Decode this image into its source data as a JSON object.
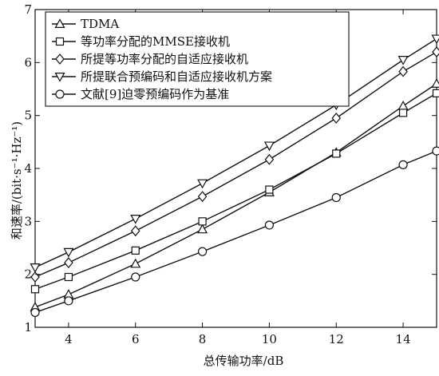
{
  "chart_data": {
    "type": "line",
    "xlabel": "总传输功率/dB",
    "ylabel": "和速率/(bit·s⁻¹·Hz⁻¹)",
    "xlim": [
      3,
      15
    ],
    "ylim": [
      1,
      7
    ],
    "xticks": [
      4,
      6,
      8,
      10,
      12,
      14
    ],
    "yticks": [
      1,
      2,
      3,
      4,
      5,
      6,
      7
    ],
    "grid": false,
    "legend_position": "top-left",
    "x": [
      3,
      4,
      6,
      8,
      10,
      12,
      14,
      15
    ],
    "series": [
      {
        "name": "TDMA",
        "marker": "triangle-up",
        "values": [
          1.38,
          1.62,
          2.2,
          2.85,
          3.55,
          4.3,
          5.18,
          5.6
        ]
      },
      {
        "name": "等功率分配的MMSE接收机",
        "marker": "square",
        "values": [
          1.72,
          1.95,
          2.45,
          3.0,
          3.6,
          4.28,
          5.05,
          5.42
        ]
      },
      {
        "name": "所提等功率分配的自适应接收机",
        "marker": "diamond",
        "values": [
          1.95,
          2.22,
          2.82,
          3.47,
          4.17,
          4.95,
          5.83,
          6.2
        ]
      },
      {
        "name": "所提联合预编码和自适应接收机方案",
        "marker": "triangle-down",
        "values": [
          2.13,
          2.42,
          3.05,
          3.72,
          4.43,
          5.2,
          6.05,
          6.45
        ]
      },
      {
        "name": "文献[9]迫零预编码作为基准",
        "marker": "circle",
        "values": [
          1.28,
          1.5,
          1.95,
          2.43,
          2.93,
          3.45,
          4.07,
          4.33
        ]
      }
    ]
  }
}
